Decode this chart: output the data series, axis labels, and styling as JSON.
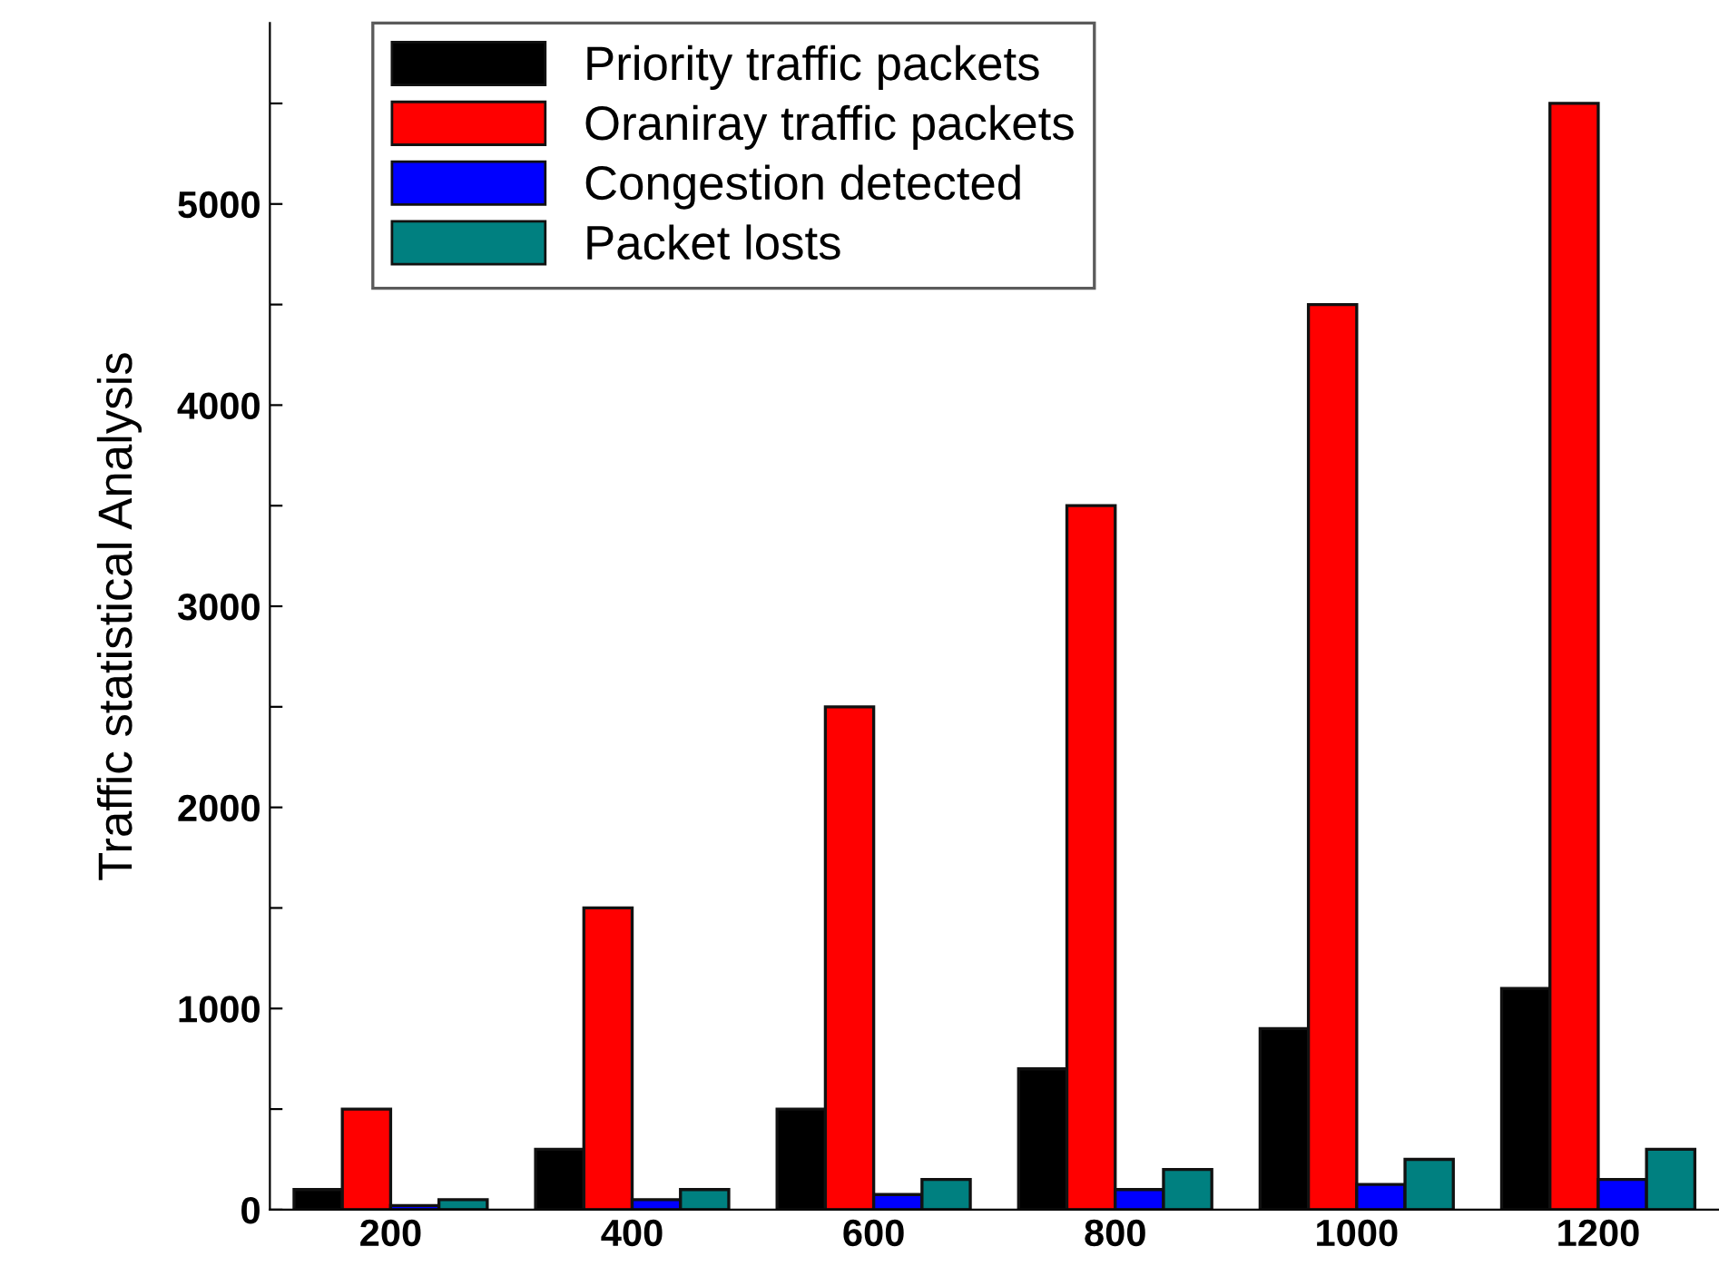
{
  "chart_data": {
    "type": "bar",
    "ylabel": "Traffic statistical Analysis",
    "categories": [
      "200",
      "400",
      "600",
      "800",
      "1000",
      "1200"
    ],
    "series": [
      {
        "name": "Priority traffic packets",
        "color": "#000000",
        "values": [
          100,
          300,
          500,
          700,
          900,
          1100
        ]
      },
      {
        "name": "Oraniray traffic packets",
        "color": "#ff0000",
        "values": [
          500,
          1500,
          2500,
          3500,
          4500,
          5500
        ]
      },
      {
        "name": "Congestion detected",
        "color": "#0000ff",
        "values": [
          20,
          50,
          75,
          100,
          125,
          150
        ]
      },
      {
        "name": "Packet losts",
        "color": "#008080",
        "values": [
          50,
          100,
          150,
          200,
          250,
          300
        ]
      }
    ],
    "ylim": [
      0,
      5900
    ],
    "yticks": [
      0,
      {
        "value": 500,
        "label": null
      },
      1000,
      {
        "value": 1500,
        "label": null
      },
      2000,
      {
        "value": 2500,
        "label": null
      },
      3000,
      {
        "value": 3500,
        "label": null
      },
      4000,
      {
        "value": 4500,
        "label": null
      },
      5000,
      {
        "value": 5500,
        "label": null
      }
    ],
    "grid": false,
    "legend": "top"
  }
}
